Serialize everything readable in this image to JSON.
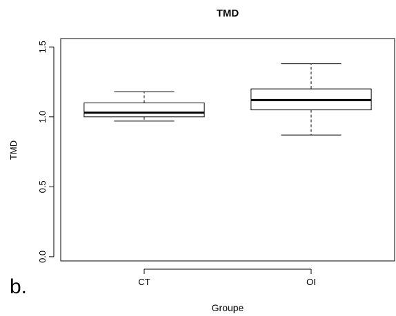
{
  "panel_label": "b.",
  "chart_data": {
    "type": "box",
    "title": "TMD",
    "xlabel": "Groupe",
    "ylabel": "TMD",
    "ylim": [
      -0.03,
      1.56
    ],
    "yticks": [
      0.0,
      0.5,
      1.0,
      1.5
    ],
    "ytick_labels": [
      "0.0",
      "0.5",
      "1.0",
      "1.5"
    ],
    "categories": [
      "CT",
      "OI"
    ],
    "boxes": [
      {
        "category": "CT",
        "whisker_low": 0.97,
        "q1": 1.0,
        "median": 1.03,
        "q3": 1.1,
        "whisker_high": 1.18
      },
      {
        "category": "OI",
        "whisker_low": 0.87,
        "q1": 1.05,
        "median": 1.12,
        "q3": 1.2,
        "whisker_high": 1.38
      }
    ],
    "grid": false,
    "legend": "none"
  }
}
